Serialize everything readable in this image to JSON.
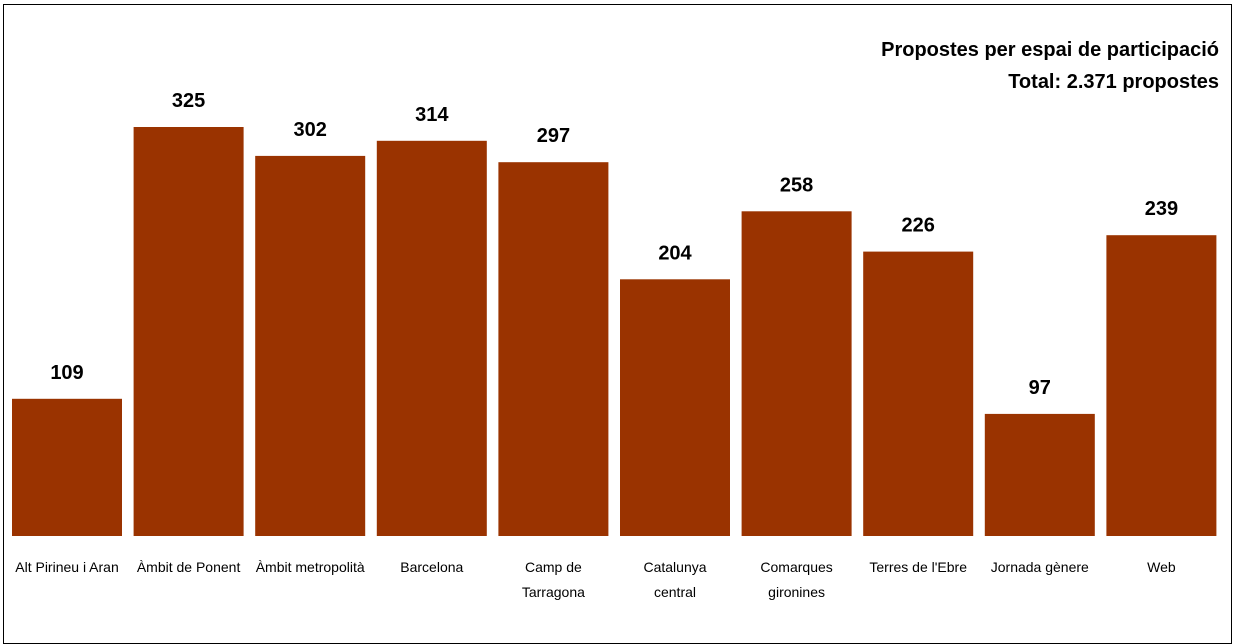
{
  "chart_data": {
    "type": "bar",
    "title": "Propostes per espai de participació",
    "subtitle": "Total: 2.371 propostes",
    "categories": [
      [
        "Alt Pirineu i Aran"
      ],
      [
        "Àmbit de Ponent"
      ],
      [
        "Àmbit metropolità"
      ],
      [
        "Barcelona"
      ],
      [
        "Camp de",
        "Tarragona"
      ],
      [
        "Catalunya",
        "central"
      ],
      [
        "Comarques",
        "gironines"
      ],
      [
        "Terres de l'Ebre"
      ],
      [
        "Jornada gènere"
      ],
      [
        "Web"
      ]
    ],
    "values": [
      109,
      325,
      302,
      314,
      297,
      204,
      258,
      226,
      97,
      239
    ],
    "bar_color": "#9a3300",
    "ylim": [
      0,
      325
    ],
    "grid": false,
    "legend": "none"
  }
}
